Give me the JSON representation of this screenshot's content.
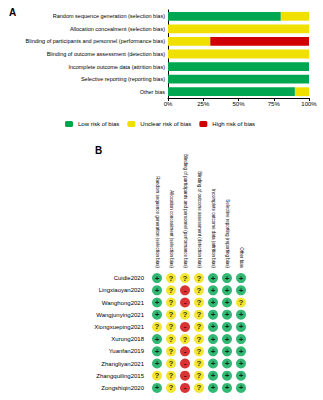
{
  "chart_data": [
    {
      "type": "bar",
      "title": "A",
      "orientation": "horizontal",
      "stacked": true,
      "legend": "bottom",
      "categories": [
        "Random sequence generation (selection bias)",
        "Allocation concealment (selection bias)",
        "Blinding of participants and personnel (performance bias)",
        "Blinding of outcome assessment (detection bias)",
        "Incomplete outcome data (attrition bias)",
        "Selective reporting (reporting bias)",
        "Other bias"
      ],
      "series": [
        {
          "name": "Low risk of bias",
          "color": "#00a650",
          "values": [
            80,
            0,
            0,
            0,
            100,
            100,
            90
          ]
        },
        {
          "name": "Unclear risk of bias",
          "color": "#f0e000",
          "values": [
            20,
            100,
            30,
            100,
            0,
            0,
            10
          ]
        },
        {
          "name": "High risk of bias",
          "color": "#d00000",
          "values": [
            0,
            0,
            70,
            0,
            0,
            0,
            0
          ]
        }
      ],
      "xlim": [
        0,
        100
      ],
      "xticks": [
        {
          "value": 0,
          "label": "0%"
        },
        {
          "value": 25,
          "label": "25%"
        },
        {
          "value": 50,
          "label": "50%"
        },
        {
          "value": 75,
          "label": "75%"
        },
        {
          "value": 100,
          "label": "100%"
        }
      ]
    },
    {
      "type": "scatter",
      "title": "B",
      "marker": "circle",
      "categories": [
        "Random sequence generation (selection bias)",
        "Allocation concealment (selection bias)",
        "Blinding of participants and personnel (performance bias)",
        "Blinding of outcome assessment (detection bias)",
        "Incomplete outcome data (attrition bias)",
        "Selective reporting (reporting bias)",
        "Other bias"
      ],
      "studies": [
        "Cuidie2020",
        "Lingxiaoyan2020",
        "Wanghong2021",
        "Wangjunying2021",
        "Xiongxueping2021",
        "Xurong2018",
        "Yuanfan2019",
        "Zhangliyan2021",
        "Zhangquiling2015",
        "Zongshiqin2020"
      ],
      "judgements": [
        {
          "symbol": "+",
          "color": "#00a650"
        },
        {
          "symbol": "?",
          "color": "#f0e000"
        },
        {
          "symbol": "-",
          "color": "#d00000"
        }
      ],
      "cells": [
        [
          "+",
          "?",
          "?",
          "?",
          "+",
          "+",
          "+"
        ],
        [
          "+",
          "?",
          "-",
          "?",
          "+",
          "+",
          "+"
        ],
        [
          "+",
          "?",
          "-",
          "?",
          "+",
          "+",
          "?"
        ],
        [
          "+",
          "?",
          "?",
          "?",
          "+",
          "+",
          "+"
        ],
        [
          "?",
          "?",
          "-",
          "?",
          "+",
          "+",
          "+"
        ],
        [
          "+",
          "?",
          "?",
          "?",
          "+",
          "+",
          "+"
        ],
        [
          "+",
          "?",
          "-",
          "?",
          "+",
          "+",
          "+"
        ],
        [
          "+",
          "?",
          "-",
          "?",
          "+",
          "+",
          "+"
        ],
        [
          "?",
          "?",
          "-",
          "?",
          "+",
          "+",
          "+"
        ],
        [
          "+",
          "?",
          "-",
          "?",
          "+",
          "+",
          "+"
        ]
      ]
    }
  ]
}
